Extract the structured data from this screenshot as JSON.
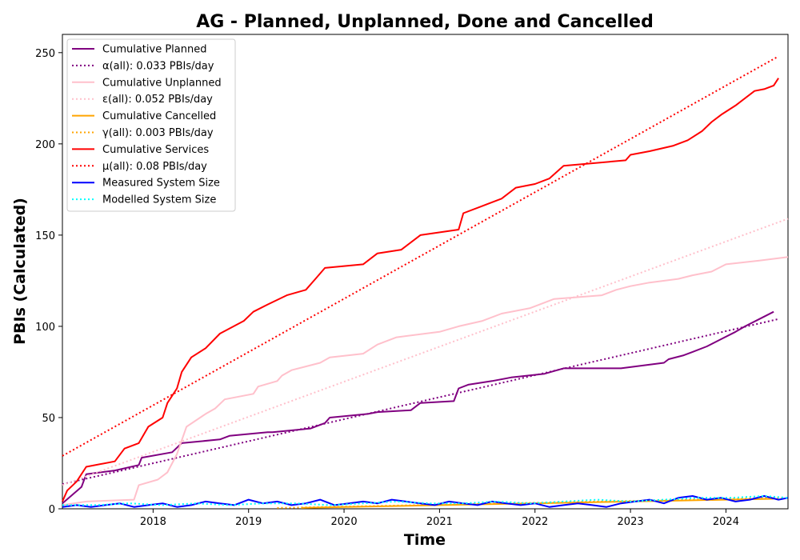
{
  "chart_data": {
    "type": "line",
    "title": "AG - Planned, Unplanned, Done  and Cancelled",
    "xlabel": "Time",
    "ylabel": "PBIs (Calculated)",
    "xlim": [
      2017.05,
      2024.65
    ],
    "ylim": [
      0,
      260
    ],
    "xticks": [
      2018,
      2019,
      2020,
      2021,
      2022,
      2023,
      2024
    ],
    "xtick_labels": [
      "2018",
      "2019",
      "2020",
      "2021",
      "2022",
      "2023",
      "2024"
    ],
    "yticks": [
      0,
      50,
      100,
      150,
      200,
      250
    ],
    "ytick_labels": [
      "0",
      "50",
      "100",
      "150",
      "200",
      "250"
    ],
    "grid": false,
    "legend_position": "top-left",
    "series": [
      {
        "name": "Cumulative Planned",
        "color": "#800080",
        "style": "solid",
        "x": [
          2017.05,
          2017.25,
          2017.3,
          2017.6,
          2017.85,
          2017.88,
          2018.2,
          2018.3,
          2018.7,
          2018.8,
          2019.2,
          2019.25,
          2019.65,
          2019.8,
          2019.85,
          2020.25,
          2020.35,
          2020.7,
          2020.8,
          2021.15,
          2021.2,
          2021.3,
          2021.55,
          2021.75,
          2022.1,
          2022.3,
          2022.9,
          2023.35,
          2023.4,
          2023.55,
          2023.65,
          2023.8,
          2023.95,
          2024.1,
          2024.2,
          2024.35,
          2024.5
        ],
        "y": [
          3,
          12,
          19,
          21,
          24,
          28,
          31,
          36,
          38,
          40,
          42,
          42,
          44,
          47,
          50,
          52,
          53,
          54,
          58,
          59,
          66,
          68,
          70,
          72,
          74,
          77,
          77,
          80,
          82,
          84,
          86,
          89,
          93,
          97,
          100,
          104,
          108
        ]
      },
      {
        "name": "α(all): 0.033 PBIs/day",
        "color": "#800080",
        "style": "dotted",
        "x": [
          2017.05,
          2024.55
        ],
        "y": [
          13.5,
          104
        ]
      },
      {
        "name": "Cumulative Unplanned",
        "color": "#ffc0cb",
        "style": "solid",
        "x": [
          2017.05,
          2017.3,
          2017.8,
          2017.85,
          2018.05,
          2018.15,
          2018.25,
          2018.35,
          2018.55,
          2018.65,
          2018.75,
          2019.05,
          2019.1,
          2019.3,
          2019.35,
          2019.45,
          2019.75,
          2019.85,
          2020.2,
          2020.35,
          2020.55,
          2021.0,
          2021.2,
          2021.45,
          2021.65,
          2021.95,
          2022.2,
          2022.7,
          2022.85,
          2023.0,
          2023.2,
          2023.5,
          2023.65,
          2023.85,
          2024.0,
          2024.35,
          2024.65
        ],
        "y": [
          2,
          4,
          5,
          13,
          16,
          20,
          30,
          45,
          52,
          55,
          60,
          63,
          67,
          70,
          73,
          76,
          80,
          83,
          85,
          90,
          94,
          97,
          100,
          103,
          107,
          110,
          115,
          117,
          120,
          122,
          124,
          126,
          128,
          130,
          134,
          136,
          138
        ]
      },
      {
        "name": "ε(all): 0.052 PBIs/day",
        "color": "#ffc0cb",
        "style": "dotted",
        "x": [
          2017.05,
          2024.65
        ],
        "y": [
          13,
          159
        ]
      },
      {
        "name": "Cumulative Cancelled",
        "color": "#ffa500",
        "style": "solid",
        "x": [
          2019.55,
          2020.0,
          2020.5,
          2021.0,
          2021.5,
          2022.0,
          2022.5,
          2023.0,
          2023.5,
          2024.0,
          2024.5
        ],
        "y": [
          0.5,
          1,
          1.5,
          2,
          2.5,
          3,
          3.5,
          4,
          4.5,
          5,
          5.5
        ]
      },
      {
        "name": "γ(all): 0.003 PBIs/day",
        "color": "#ffa500",
        "style": "dotted",
        "x": [
          2019.3,
          2024.6
        ],
        "y": [
          0.5,
          6
        ]
      },
      {
        "name": "Cumulative Services",
        "color": "#ff0000",
        "style": "solid",
        "x": [
          2017.05,
          2017.1,
          2017.2,
          2017.3,
          2017.6,
          2017.7,
          2017.85,
          2017.95,
          2018.1,
          2018.15,
          2018.25,
          2018.3,
          2018.4,
          2018.55,
          2018.7,
          2018.95,
          2019.05,
          2019.2,
          2019.4,
          2019.6,
          2019.7,
          2019.8,
          2020.2,
          2020.35,
          2020.6,
          2020.8,
          2021.2,
          2021.25,
          2021.45,
          2021.65,
          2021.8,
          2022.0,
          2022.15,
          2022.3,
          2022.95,
          2023.0,
          2023.2,
          2023.45,
          2023.6,
          2023.75,
          2023.85,
          2023.95,
          2024.1,
          2024.3,
          2024.4,
          2024.5,
          2024.55
        ],
        "y": [
          4,
          10,
          15,
          23,
          26,
          33,
          36,
          45,
          50,
          58,
          66,
          75,
          83,
          88,
          96,
          103,
          108,
          112,
          117,
          120,
          126,
          132,
          134,
          140,
          142,
          150,
          153,
          162,
          166,
          170,
          176,
          178,
          181,
          188,
          191,
          194,
          196,
          199,
          202,
          207,
          212,
          216,
          221,
          229,
          230,
          232,
          236
        ]
      },
      {
        "name": "μ(all): 0.08 PBIs/day",
        "color": "#ff0000",
        "style": "dotted",
        "x": [
          2017.05,
          2024.55
        ],
        "y": [
          29,
          248
        ]
      },
      {
        "name": "Measured System Size",
        "color": "#0000ff",
        "style": "solid",
        "x": [
          2017.05,
          2017.2,
          2017.35,
          2017.5,
          2017.65,
          2017.8,
          2017.95,
          2018.1,
          2018.25,
          2018.4,
          2018.55,
          2018.7,
          2018.85,
          2019.0,
          2019.15,
          2019.3,
          2019.45,
          2019.6,
          2019.75,
          2019.9,
          2020.05,
          2020.2,
          2020.35,
          2020.5,
          2020.65,
          2020.8,
          2020.95,
          2021.1,
          2021.25,
          2021.4,
          2021.55,
          2021.7,
          2021.85,
          2022.0,
          2022.15,
          2022.3,
          2022.45,
          2022.6,
          2022.75,
          2022.9,
          2023.05,
          2023.2,
          2023.35,
          2023.5,
          2023.65,
          2023.8,
          2023.95,
          2024.1,
          2024.25,
          2024.4,
          2024.55,
          2024.65
        ],
        "y": [
          1,
          2,
          1,
          2,
          3,
          1,
          2,
          3,
          1,
          2,
          4,
          3,
          2,
          5,
          3,
          4,
          2,
          3,
          5,
          2,
          3,
          4,
          3,
          5,
          4,
          3,
          2,
          4,
          3,
          2,
          4,
          3,
          2,
          3,
          1,
          2,
          3,
          2,
          1,
          3,
          4,
          5,
          3,
          6,
          7,
          5,
          6,
          4,
          5,
          7,
          5,
          6
        ]
      },
      {
        "name": "Modelled System Size",
        "color": "#00ffff",
        "style": "dotted",
        "x": [
          2017.05,
          2017.4,
          2017.75,
          2018.1,
          2018.45,
          2018.8,
          2019.15,
          2019.5,
          2019.85,
          2020.2,
          2020.55,
          2020.9,
          2021.25,
          2021.6,
          2021.95,
          2022.3,
          2022.65,
          2023.0,
          2023.35,
          2023.7,
          2024.05,
          2024.4,
          2024.65
        ],
        "y": [
          2,
          2,
          3,
          2,
          3,
          2,
          3,
          3,
          2,
          3,
          4,
          3,
          3,
          4,
          3,
          4,
          5,
          4,
          5,
          6,
          6,
          7,
          6
        ]
      }
    ]
  }
}
